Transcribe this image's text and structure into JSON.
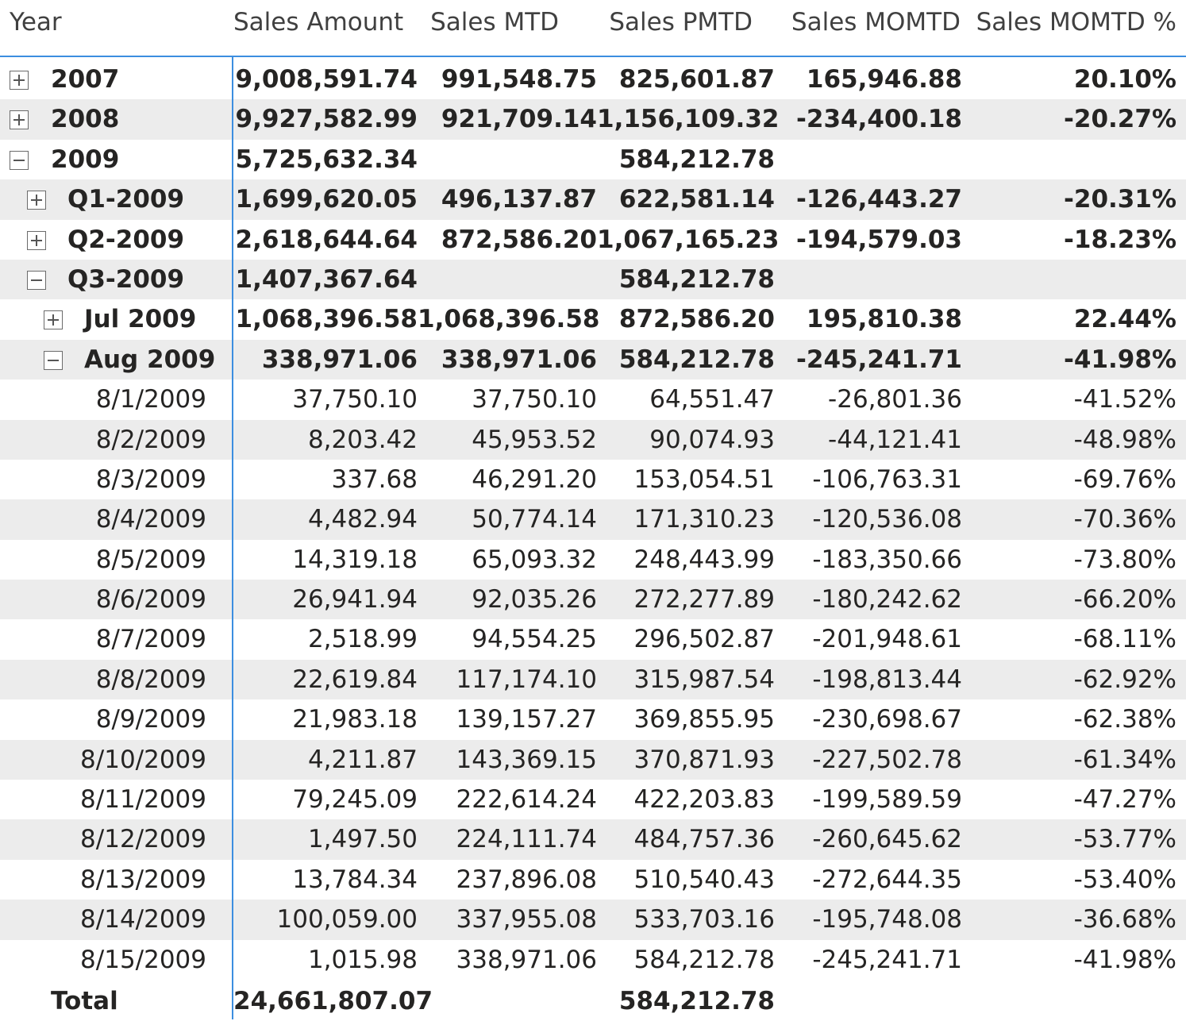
{
  "columns": {
    "year": "Year",
    "sales_amount": "Sales Amount",
    "sales_mtd": "Sales MTD",
    "sales_pmtd": "Sales PMTD",
    "sales_momtd": "Sales MOMTD",
    "sales_momtd_pct": "Sales MOMTD %"
  },
  "rows": [
    {
      "label": "2007",
      "level": 0,
      "toggle": "expand",
      "bold": true,
      "sales_amount": "9,008,591.74",
      "sales_mtd": "991,548.75",
      "sales_pmtd": "825,601.87",
      "sales_momtd": "165,946.88",
      "sales_momtd_pct": "20.10%"
    },
    {
      "label": "2008",
      "level": 0,
      "toggle": "expand",
      "bold": true,
      "sales_amount": "9,927,582.99",
      "sales_mtd": "921,709.14",
      "sales_pmtd": "1,156,109.32",
      "sales_momtd": "-234,400.18",
      "sales_momtd_pct": "-20.27%"
    },
    {
      "label": "2009",
      "level": 0,
      "toggle": "collapse",
      "bold": true,
      "sales_amount": "5,725,632.34",
      "sales_mtd": "",
      "sales_pmtd": "584,212.78",
      "sales_momtd": "",
      "sales_momtd_pct": ""
    },
    {
      "label": "Q1-2009",
      "level": 1,
      "toggle": "expand",
      "bold": true,
      "sales_amount": "1,699,620.05",
      "sales_mtd": "496,137.87",
      "sales_pmtd": "622,581.14",
      "sales_momtd": "-126,443.27",
      "sales_momtd_pct": "-20.31%"
    },
    {
      "label": "Q2-2009",
      "level": 1,
      "toggle": "expand",
      "bold": true,
      "sales_amount": "2,618,644.64",
      "sales_mtd": "872,586.20",
      "sales_pmtd": "1,067,165.23",
      "sales_momtd": "-194,579.03",
      "sales_momtd_pct": "-18.23%"
    },
    {
      "label": "Q3-2009",
      "level": 1,
      "toggle": "collapse",
      "bold": true,
      "sales_amount": "1,407,367.64",
      "sales_mtd": "",
      "sales_pmtd": "584,212.78",
      "sales_momtd": "",
      "sales_momtd_pct": ""
    },
    {
      "label": "Jul 2009",
      "level": 2,
      "toggle": "expand",
      "bold": true,
      "sales_amount": "1,068,396.58",
      "sales_mtd": "1,068,396.58",
      "sales_pmtd": "872,586.20",
      "sales_momtd": "195,810.38",
      "sales_momtd_pct": "22.44%"
    },
    {
      "label": "Aug 2009",
      "level": 2,
      "toggle": "collapse",
      "bold": true,
      "sales_amount": "338,971.06",
      "sales_mtd": "338,971.06",
      "sales_pmtd": "584,212.78",
      "sales_momtd": "-245,241.71",
      "sales_momtd_pct": "-41.98%"
    },
    {
      "label": "8/1/2009",
      "level": 3,
      "toggle": "",
      "bold": false,
      "sales_amount": "37,750.10",
      "sales_mtd": "37,750.10",
      "sales_pmtd": "64,551.47",
      "sales_momtd": "-26,801.36",
      "sales_momtd_pct": "-41.52%"
    },
    {
      "label": "8/2/2009",
      "level": 3,
      "toggle": "",
      "bold": false,
      "sales_amount": "8,203.42",
      "sales_mtd": "45,953.52",
      "sales_pmtd": "90,074.93",
      "sales_momtd": "-44,121.41",
      "sales_momtd_pct": "-48.98%"
    },
    {
      "label": "8/3/2009",
      "level": 3,
      "toggle": "",
      "bold": false,
      "sales_amount": "337.68",
      "sales_mtd": "46,291.20",
      "sales_pmtd": "153,054.51",
      "sales_momtd": "-106,763.31",
      "sales_momtd_pct": "-69.76%"
    },
    {
      "label": "8/4/2009",
      "level": 3,
      "toggle": "",
      "bold": false,
      "sales_amount": "4,482.94",
      "sales_mtd": "50,774.14",
      "sales_pmtd": "171,310.23",
      "sales_momtd": "-120,536.08",
      "sales_momtd_pct": "-70.36%"
    },
    {
      "label": "8/5/2009",
      "level": 3,
      "toggle": "",
      "bold": false,
      "sales_amount": "14,319.18",
      "sales_mtd": "65,093.32",
      "sales_pmtd": "248,443.99",
      "sales_momtd": "-183,350.66",
      "sales_momtd_pct": "-73.80%"
    },
    {
      "label": "8/6/2009",
      "level": 3,
      "toggle": "",
      "bold": false,
      "sales_amount": "26,941.94",
      "sales_mtd": "92,035.26",
      "sales_pmtd": "272,277.89",
      "sales_momtd": "-180,242.62",
      "sales_momtd_pct": "-66.20%"
    },
    {
      "label": "8/7/2009",
      "level": 3,
      "toggle": "",
      "bold": false,
      "sales_amount": "2,518.99",
      "sales_mtd": "94,554.25",
      "sales_pmtd": "296,502.87",
      "sales_momtd": "-201,948.61",
      "sales_momtd_pct": "-68.11%"
    },
    {
      "label": "8/8/2009",
      "level": 3,
      "toggle": "",
      "bold": false,
      "sales_amount": "22,619.84",
      "sales_mtd": "117,174.10",
      "sales_pmtd": "315,987.54",
      "sales_momtd": "-198,813.44",
      "sales_momtd_pct": "-62.92%"
    },
    {
      "label": "8/9/2009",
      "level": 3,
      "toggle": "",
      "bold": false,
      "sales_amount": "21,983.18",
      "sales_mtd": "139,157.27",
      "sales_pmtd": "369,855.95",
      "sales_momtd": "-230,698.67",
      "sales_momtd_pct": "-62.38%"
    },
    {
      "label": "8/10/2009",
      "level": 3,
      "toggle": "",
      "bold": false,
      "sales_amount": "4,211.87",
      "sales_mtd": "143,369.15",
      "sales_pmtd": "370,871.93",
      "sales_momtd": "-227,502.78",
      "sales_momtd_pct": "-61.34%"
    },
    {
      "label": "8/11/2009",
      "level": 3,
      "toggle": "",
      "bold": false,
      "sales_amount": "79,245.09",
      "sales_mtd": "222,614.24",
      "sales_pmtd": "422,203.83",
      "sales_momtd": "-199,589.59",
      "sales_momtd_pct": "-47.27%"
    },
    {
      "label": "8/12/2009",
      "level": 3,
      "toggle": "",
      "bold": false,
      "sales_amount": "1,497.50",
      "sales_mtd": "224,111.74",
      "sales_pmtd": "484,757.36",
      "sales_momtd": "-260,645.62",
      "sales_momtd_pct": "-53.77%"
    },
    {
      "label": "8/13/2009",
      "level": 3,
      "toggle": "",
      "bold": false,
      "sales_amount": "13,784.34",
      "sales_mtd": "237,896.08",
      "sales_pmtd": "510,540.43",
      "sales_momtd": "-272,644.35",
      "sales_momtd_pct": "-53.40%"
    },
    {
      "label": "8/14/2009",
      "level": 3,
      "toggle": "",
      "bold": false,
      "sales_amount": "100,059.00",
      "sales_mtd": "337,955.08",
      "sales_pmtd": "533,703.16",
      "sales_momtd": "-195,748.08",
      "sales_momtd_pct": "-36.68%"
    },
    {
      "label": "8/15/2009",
      "level": 3,
      "toggle": "",
      "bold": false,
      "sales_amount": "1,015.98",
      "sales_mtd": "338,971.06",
      "sales_pmtd": "584,212.78",
      "sales_momtd": "-245,241.71",
      "sales_momtd_pct": "-41.98%"
    }
  ],
  "total": {
    "label": "Total",
    "sales_amount": "24,661,807.07",
    "sales_mtd": "",
    "sales_pmtd": "584,212.78",
    "sales_momtd": "",
    "sales_momtd_pct": ""
  }
}
